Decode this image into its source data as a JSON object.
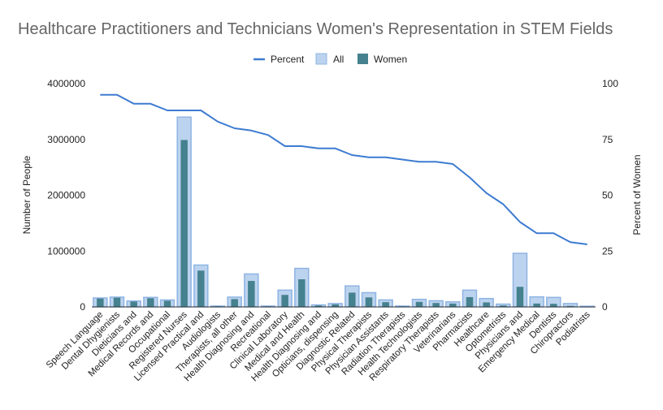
{
  "chart_data": {
    "type": "bar",
    "title": "Healthcare Practitioners and Technicians Women's Representation in STEM Fields",
    "ylabel": "Number of People",
    "y2label": "Percent of Women",
    "ylim": [
      0,
      4000000
    ],
    "y2lim": [
      0,
      100
    ],
    "yticks": [
      "0",
      "1000000",
      "2000000",
      "3000000",
      "4000000"
    ],
    "y2ticks": [
      "0",
      "25",
      "50",
      "75",
      "100"
    ],
    "legend_position": "top",
    "colors": {
      "percent": "#3d7bd1",
      "all_fill": "#bcd3ef",
      "all_stroke": "#8eb4e3",
      "women": "#45818e",
      "axis": "#333333"
    },
    "categories": [
      "Speech Language",
      "Dental Dhygienists",
      "Dieticians and",
      "Medical Records and",
      "Occupational",
      "Registered Nurses",
      "Licensed Practical and",
      "Audiologists",
      "Therapists, all other",
      "Health Diagnosing and",
      "Recreational",
      "Clinical Laboratory",
      "Medical and Health",
      "Health Diagnosing and",
      "Opticians, dispensing",
      "Diagnostic Related",
      "Physical Therapists",
      "Physician Assistants",
      "Radiation Therapists",
      "Health Technologists",
      "Respiratory Therapists",
      "Veterinarians",
      "Pharmacists",
      "Healthcare",
      "Optometrists",
      "Physicians and",
      "Emergency Medical",
      "Dentists",
      "Chiropractors",
      "Podiatrists"
    ],
    "series": [
      {
        "name": "Percent",
        "type": "line",
        "axis": "right",
        "values": [
          95,
          95,
          91,
          91,
          88,
          88,
          88,
          83,
          80,
          79,
          77,
          72,
          72,
          71,
          71,
          68,
          67,
          67,
          66,
          65,
          65,
          64,
          58,
          51,
          46,
          38,
          33,
          33,
          29,
          28
        ]
      },
      {
        "name": "All",
        "type": "bar",
        "axis": "left",
        "values": [
          160000,
          175000,
          105000,
          170000,
          125000,
          3400000,
          750000,
          15000,
          175000,
          590000,
          15000,
          300000,
          690000,
          35000,
          60000,
          375000,
          255000,
          125000,
          15000,
          135000,
          110000,
          90000,
          300000,
          150000,
          50000,
          960000,
          180000,
          170000,
          60000,
          12000
        ]
      },
      {
        "name": "Women",
        "type": "bar",
        "axis": "left",
        "values": [
          150000,
          165000,
          95000,
          155000,
          110000,
          2990000,
          650000,
          12000,
          140000,
          465000,
          11000,
          215000,
          495000,
          25000,
          45000,
          255000,
          170000,
          85000,
          10000,
          90000,
          70000,
          60000,
          175000,
          80000,
          25000,
          360000,
          60000,
          55000,
          18000,
          4000
        ]
      }
    ]
  }
}
